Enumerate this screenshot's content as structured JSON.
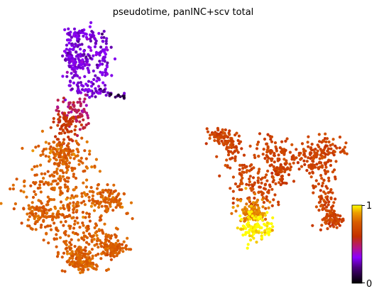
{
  "chart_data": {
    "type": "scatter",
    "title": "pseudotime, panINC+scv total",
    "xlabel": "",
    "ylabel": "",
    "frame": false,
    "grid": false,
    "colormap": "gnuplot",
    "colorbar": {
      "label": "",
      "ticks": [
        "0",
        "1"
      ],
      "range": [
        0,
        1
      ],
      "placement": "right"
    },
    "series": [
      {
        "clusters": [
          {
            "region": "top loop of left component",
            "pseudotime": 0.3,
            "n_points": 320
          },
          {
            "region": "tail extending right from top loop",
            "pseudotime": 0.05,
            "n_points": 22
          },
          {
            "region": "neck below top loop",
            "pseudotime": 0.5,
            "n_points": 70
          },
          {
            "region": "upper neck",
            "pseudotime": 0.62,
            "n_points": 70
          },
          {
            "region": "large lower left body",
            "pseudotime": 0.78,
            "n_points": 900
          },
          {
            "region": "right component upper arms",
            "pseudotime": 0.68,
            "n_points": 650
          },
          {
            "region": "right component lower lobe",
            "pseudotime": 0.85,
            "n_points": 100
          },
          {
            "region": "right component bottom tip",
            "pseudotime": 1.0,
            "n_points": 110
          }
        ]
      }
    ]
  }
}
